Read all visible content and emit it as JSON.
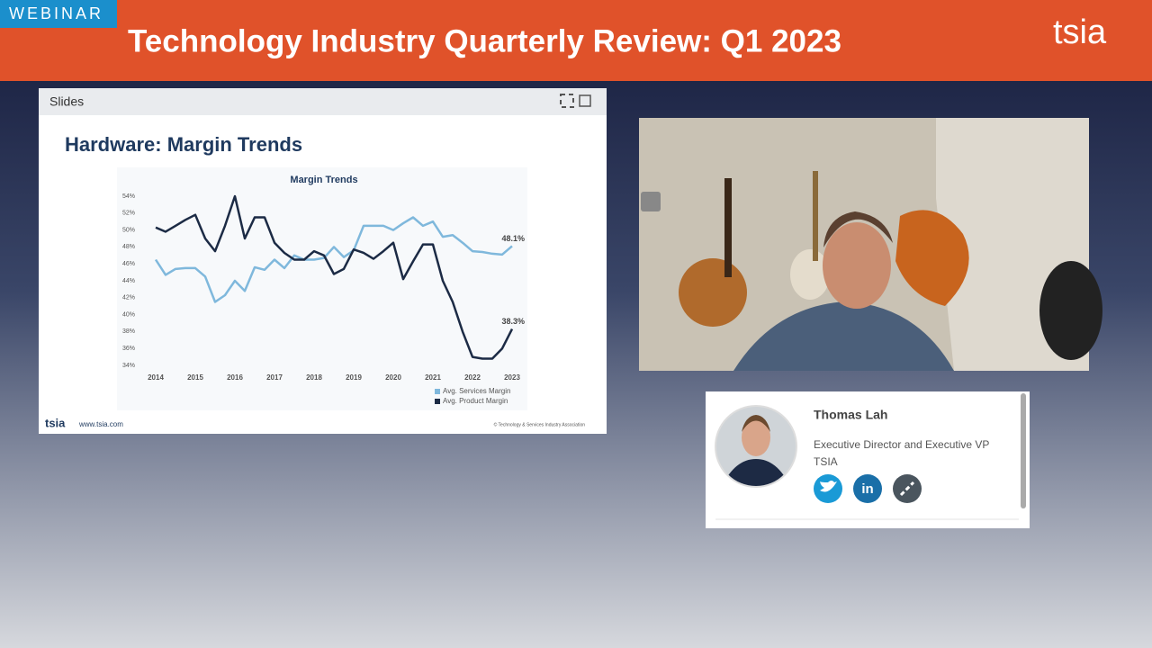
{
  "header": {
    "badge": "WEBINAR",
    "title": "Technology Industry Quarterly Review: Q1 2023",
    "logo": "tsia"
  },
  "slides": {
    "label": "Slides",
    "heading": "Hardware: Margin Trends",
    "footer_logo": "tsia",
    "footer_url": "www.tsia.com",
    "footer_copyright": "© Technology & Services Industry Association",
    "chart_data": {
      "type": "line",
      "title": "Margin Trends",
      "x": [
        2014,
        2014.25,
        2014.5,
        2014.75,
        2015,
        2015.25,
        2015.5,
        2015.75,
        2016,
        2016.25,
        2016.5,
        2016.75,
        2017,
        2017.25,
        2017.5,
        2017.75,
        2018,
        2018.25,
        2018.5,
        2018.75,
        2019,
        2019.25,
        2019.5,
        2019.75,
        2020,
        2020.25,
        2020.5,
        2020.75,
        2021,
        2021.25,
        2021.5,
        2021.75,
        2022,
        2022.25,
        2022.5,
        2022.75,
        2023
      ],
      "xlim": [
        2014,
        2023
      ],
      "xticks": [
        2014,
        2015,
        2016,
        2017,
        2018,
        2019,
        2020,
        2021,
        2022,
        2023
      ],
      "ylim": [
        34,
        54
      ],
      "yticks": [
        {
          "value": 34,
          "label": "34%"
        },
        {
          "value": 36,
          "label": "36%"
        },
        {
          "value": 38,
          "label": "38%"
        },
        {
          "value": 40,
          "label": "40%"
        },
        {
          "value": 42,
          "label": "42%"
        },
        {
          "value": 44,
          "label": "44%"
        },
        {
          "value": 46,
          "label": "46%"
        },
        {
          "value": 48,
          "label": "48%"
        },
        {
          "value": 50,
          "label": "50%"
        },
        {
          "value": 52,
          "label": "52%"
        },
        {
          "value": 54,
          "label": "54%"
        }
      ],
      "series": [
        {
          "name": "Avg. Services Margin",
          "color": "#7fb8dc",
          "values": [
            46.5,
            44.7,
            45.4,
            45.5,
            45.5,
            44.5,
            41.5,
            42.3,
            44,
            42.8,
            45.6,
            45.3,
            46.5,
            45.5,
            47,
            46.5,
            46.5,
            46.7,
            48,
            46.8,
            47.6,
            50.5,
            50.5,
            50.5,
            50,
            50.8,
            51.5,
            50.5,
            51,
            49.2,
            49.4,
            48.5,
            47.5,
            47.4,
            47.2,
            47.1,
            48.1
          ],
          "value_labels": [
            null,
            null,
            null,
            null,
            null,
            null,
            null,
            null,
            null,
            null,
            null,
            null,
            null,
            null,
            null,
            null,
            null,
            null,
            null,
            null,
            null,
            null,
            null,
            null,
            null,
            null,
            null,
            null,
            null,
            null,
            null,
            null,
            null,
            null,
            null,
            null,
            "48.1%"
          ]
        },
        {
          "name": "Avg. Product Margin",
          "color": "#1c2b45",
          "values": [
            50.3,
            49.8,
            50.5,
            51.2,
            51.8,
            49,
            47.5,
            50.5,
            54,
            49,
            51.5,
            51.5,
            48.5,
            47.3,
            46.5,
            46.5,
            47.5,
            47,
            44.8,
            45.4,
            47.7,
            47.3,
            46.6,
            47.5,
            48.5,
            44.2,
            46.3,
            48.3,
            48.3,
            44,
            41.5,
            38,
            35,
            34.8,
            34.8,
            36,
            38.3
          ],
          "value_labels": [
            null,
            null,
            null,
            null,
            null,
            null,
            null,
            null,
            null,
            null,
            null,
            null,
            null,
            null,
            null,
            null,
            null,
            null,
            null,
            null,
            null,
            null,
            null,
            null,
            null,
            null,
            null,
            null,
            null,
            null,
            null,
            null,
            null,
            null,
            null,
            null,
            "38.3%"
          ]
        }
      ]
    }
  },
  "speaker": {
    "name": "Thomas Lah",
    "role": "Executive Director and Executive VP",
    "org": "TSIA"
  }
}
